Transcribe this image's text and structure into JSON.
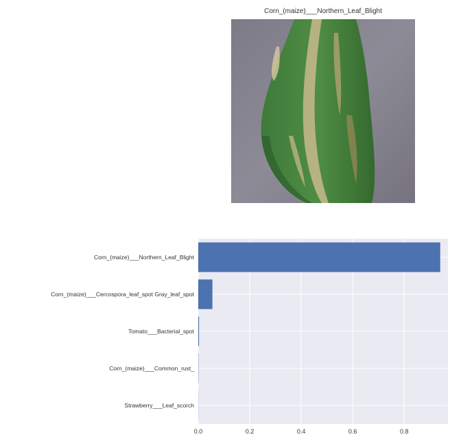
{
  "image_panel": {
    "title": "Corn_(maize)___Northern_Leaf_Blight",
    "image_subject": "green corn leaf with tan lesions on gray background"
  },
  "chart_data": {
    "type": "bar",
    "orientation": "horizontal",
    "categories": [
      "Corn_(maize)___Northern_Leaf_Blight",
      "Corn_(maize)___Cercospora_leaf_spot Gray_leaf_spot",
      "Tomato___Bacterial_spot",
      "Corn_(maize)___Common_rust_",
      "Strawberry___Leaf_scorch"
    ],
    "values": [
      0.94,
      0.055,
      0.003,
      0.001,
      0.0005
    ],
    "xlim": [
      0,
      0.97
    ],
    "xticks": [
      0.0,
      0.2,
      0.4,
      0.6,
      0.8
    ],
    "xtick_labels": [
      "0.0",
      "0.2",
      "0.4",
      "0.6",
      "0.8"
    ],
    "grid": true,
    "colors": {
      "bar": "#4c72b0",
      "plot_background": "#eaeaf2",
      "grid": "#ffffff",
      "text": "#333333"
    }
  }
}
